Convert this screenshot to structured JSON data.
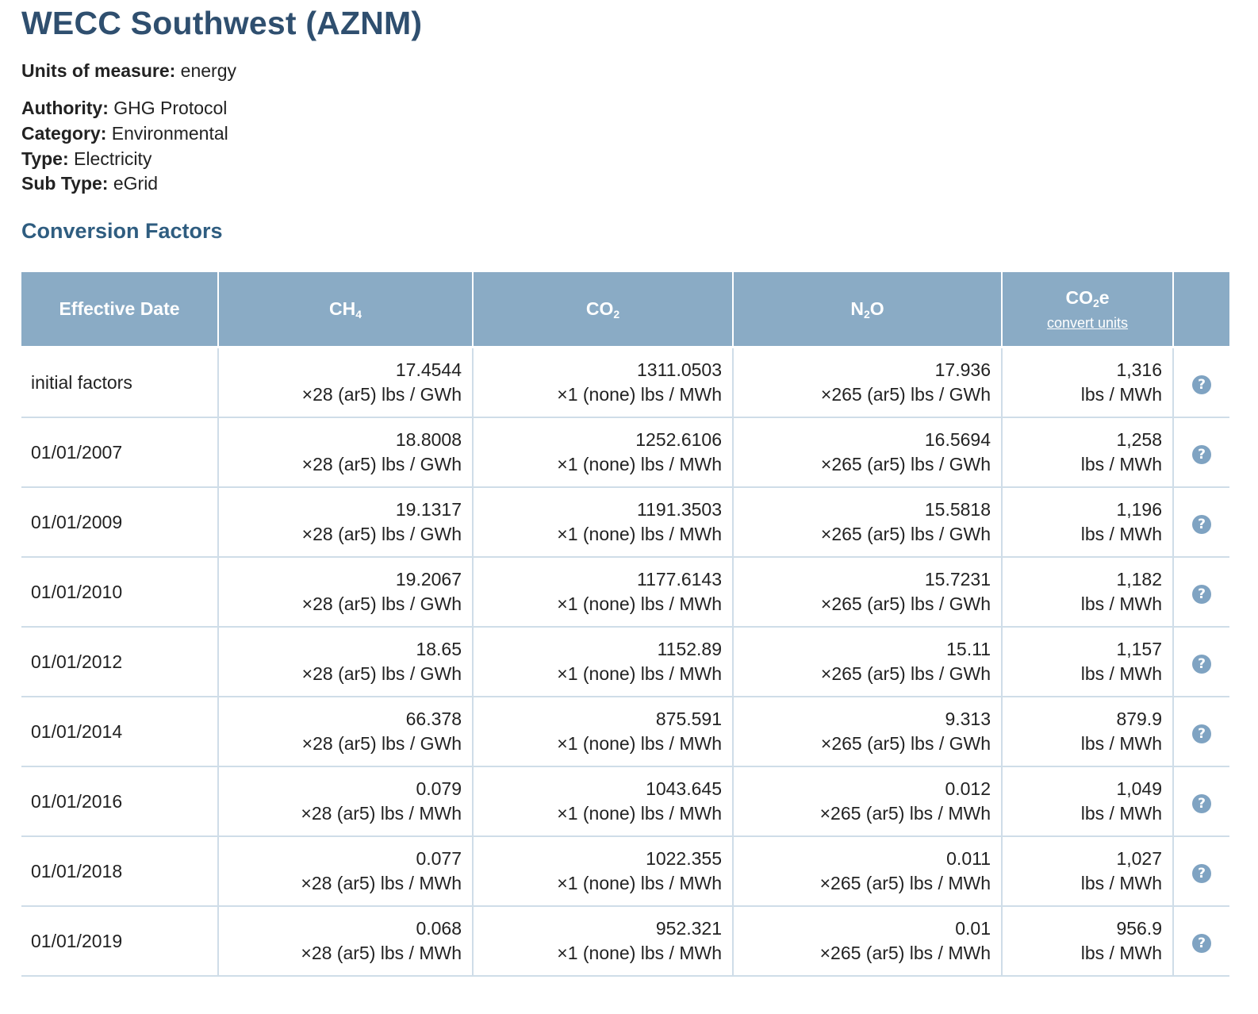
{
  "page": {
    "title": "WECC Southwest (AZNM)",
    "units_label": "Units of measure:",
    "units_value": "energy",
    "authority_label": "Authority:",
    "authority_value": "GHG Protocol",
    "category_label": "Category:",
    "category_value": "Environmental",
    "type_label": "Type:",
    "type_value": "Electricity",
    "subtype_label": "Sub Type:",
    "subtype_value": "eGrid",
    "section_title": "Conversion Factors"
  },
  "table": {
    "headers": {
      "date": "Effective Date",
      "ch4_base": "CH",
      "ch4_sub": "4",
      "co2_base": "CO",
      "co2_sub": "2",
      "n2o_base": "N",
      "n2o_sub": "2",
      "n2o_tail": "O",
      "co2e_base": "CO",
      "co2e_sub": "2",
      "co2e_tail": "e",
      "convert_link": "convert units"
    },
    "rows": [
      {
        "date": "initial factors",
        "ch4": "17.4544",
        "ch4_unit": "×28 (ar5) lbs / GWh",
        "co2": "1311.0503",
        "co2_unit": "×1 (none) lbs / MWh",
        "n2o": "17.936",
        "n2o_unit": "×265 (ar5) lbs / GWh",
        "co2e": "1,316",
        "co2e_unit": "lbs / MWh"
      },
      {
        "date": "01/01/2007",
        "ch4": "18.8008",
        "ch4_unit": "×28 (ar5) lbs / GWh",
        "co2": "1252.6106",
        "co2_unit": "×1 (none) lbs / MWh",
        "n2o": "16.5694",
        "n2o_unit": "×265 (ar5) lbs / GWh",
        "co2e": "1,258",
        "co2e_unit": "lbs / MWh"
      },
      {
        "date": "01/01/2009",
        "ch4": "19.1317",
        "ch4_unit": "×28 (ar5) lbs / GWh",
        "co2": "1191.3503",
        "co2_unit": "×1 (none) lbs / MWh",
        "n2o": "15.5818",
        "n2o_unit": "×265 (ar5) lbs / GWh",
        "co2e": "1,196",
        "co2e_unit": "lbs / MWh"
      },
      {
        "date": "01/01/2010",
        "ch4": "19.2067",
        "ch4_unit": "×28 (ar5) lbs / GWh",
        "co2": "1177.6143",
        "co2_unit": "×1 (none) lbs / MWh",
        "n2o": "15.7231",
        "n2o_unit": "×265 (ar5) lbs / GWh",
        "co2e": "1,182",
        "co2e_unit": "lbs / MWh"
      },
      {
        "date": "01/01/2012",
        "ch4": "18.65",
        "ch4_unit": "×28 (ar5) lbs / GWh",
        "co2": "1152.89",
        "co2_unit": "×1 (none) lbs / MWh",
        "n2o": "15.11",
        "n2o_unit": "×265 (ar5) lbs / GWh",
        "co2e": "1,157",
        "co2e_unit": "lbs / MWh"
      },
      {
        "date": "01/01/2014",
        "ch4": "66.378",
        "ch4_unit": "×28 (ar5) lbs / GWh",
        "co2": "875.591",
        "co2_unit": "×1 (none) lbs / MWh",
        "n2o": "9.313",
        "n2o_unit": "×265 (ar5) lbs / GWh",
        "co2e": "879.9",
        "co2e_unit": "lbs / MWh"
      },
      {
        "date": "01/01/2016",
        "ch4": "0.079",
        "ch4_unit": "×28 (ar5) lbs / MWh",
        "co2": "1043.645",
        "co2_unit": "×1 (none) lbs / MWh",
        "n2o": "0.012",
        "n2o_unit": "×265 (ar5) lbs / MWh",
        "co2e": "1,049",
        "co2e_unit": "lbs / MWh"
      },
      {
        "date": "01/01/2018",
        "ch4": "0.077",
        "ch4_unit": "×28 (ar5) lbs / MWh",
        "co2": "1022.355",
        "co2_unit": "×1 (none) lbs / MWh",
        "n2o": "0.011",
        "n2o_unit": "×265 (ar5) lbs / MWh",
        "co2e": "1,027",
        "co2e_unit": "lbs / MWh"
      },
      {
        "date": "01/01/2019",
        "ch4": "0.068",
        "ch4_unit": "×28 (ar5) lbs / MWh",
        "co2": "952.321",
        "co2_unit": "×1 (none) lbs / MWh",
        "n2o": "0.01",
        "n2o_unit": "×265 (ar5) lbs / MWh",
        "co2e": "956.9",
        "co2e_unit": "lbs / MWh"
      }
    ],
    "help_icon": "question-circle-icon"
  },
  "colors": {
    "title": "#2f4f6f",
    "section_title": "#2f5d80",
    "header_bg": "#8aabc5",
    "grid": "#cfdde8",
    "help_icon": "#7fa3c2"
  }
}
